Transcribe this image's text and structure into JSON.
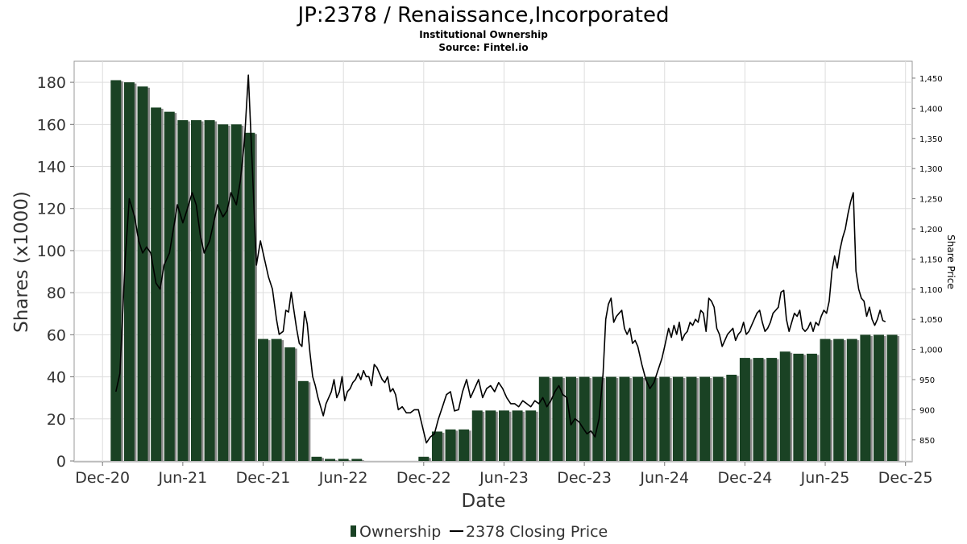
{
  "chart_data": {
    "type": "bar+line",
    "title": "JP:2378 / Renaissance,Incorporated",
    "subtitle": "Institutional Ownership",
    "source": "Source: Fintel.io",
    "xlabel": "Date",
    "ylabel": "Shares (x1000)",
    "y2label": "Share Price",
    "ylim": [
      0,
      190
    ],
    "y2lim": [
      815,
      1478
    ],
    "yticks": [
      0,
      20,
      40,
      60,
      80,
      100,
      120,
      140,
      160,
      180
    ],
    "y2ticks": [
      850,
      900,
      950,
      1000,
      1050,
      1100,
      1150,
      1200,
      1250,
      1300,
      1350,
      1400,
      1450
    ],
    "y2tick_labels": [
      "850",
      "900",
      "950",
      "1,000",
      "1,050",
      "1,100",
      "1,150",
      "1,200",
      "1,250",
      "1,300",
      "1,350",
      "1,400",
      "1,450"
    ],
    "xrange_months": [
      -2.0,
      60.5
    ],
    "xticks": [
      {
        "label": "Dec-20",
        "month": 0
      },
      {
        "label": "Jun-21",
        "month": 6
      },
      {
        "label": "Dec-21",
        "month": 12
      },
      {
        "label": "Jun-22",
        "month": 18
      },
      {
        "label": "Dec-22",
        "month": 24
      },
      {
        "label": "Jun-23",
        "month": 30
      },
      {
        "label": "Dec-23",
        "month": 36
      },
      {
        "label": "Jun-24",
        "month": 42
      },
      {
        "label": "Dec-24",
        "month": 48
      },
      {
        "label": "Jun-25",
        "month": 54
      },
      {
        "label": "Dec-25",
        "month": 60
      }
    ],
    "bar_start_month": 1,
    "bar_step_months": 1,
    "ownership_series_name": "Ownership",
    "ownership_values": [
      181,
      180,
      178,
      168,
      166,
      162,
      162,
      162,
      160,
      160,
      156,
      58,
      58,
      54,
      38,
      2,
      1,
      1,
      1,
      0,
      0,
      0,
      0,
      2,
      14,
      15,
      15,
      24,
      24,
      24,
      24,
      24,
      40,
      40,
      40,
      40,
      40,
      40,
      40,
      40,
      40,
      40,
      40,
      40,
      40,
      40,
      41,
      49,
      49,
      49,
      52,
      51,
      51,
      58,
      58,
      58,
      60,
      60,
      60
    ],
    "price_series_name": "2378 Closing Price",
    "price": [
      {
        "m": 1.0,
        "v": 930
      },
      {
        "m": 1.3,
        "v": 960
      },
      {
        "m": 1.7,
        "v": 1150
      },
      {
        "m": 2.0,
        "v": 1250
      },
      {
        "m": 2.4,
        "v": 1220
      },
      {
        "m": 2.7,
        "v": 1180
      },
      {
        "m": 3.0,
        "v": 1160
      },
      {
        "m": 3.3,
        "v": 1170
      },
      {
        "m": 3.6,
        "v": 1160
      },
      {
        "m": 4.0,
        "v": 1110
      },
      {
        "m": 4.3,
        "v": 1100
      },
      {
        "m": 4.6,
        "v": 1140
      },
      {
        "m": 5.0,
        "v": 1160
      },
      {
        "m": 5.3,
        "v": 1200
      },
      {
        "m": 5.6,
        "v": 1240
      },
      {
        "m": 6.0,
        "v": 1210
      },
      {
        "m": 6.3,
        "v": 1230
      },
      {
        "m": 6.7,
        "v": 1260
      },
      {
        "m": 7.0,
        "v": 1240
      },
      {
        "m": 7.3,
        "v": 1190
      },
      {
        "m": 7.6,
        "v": 1160
      },
      {
        "m": 8.0,
        "v": 1180
      },
      {
        "m": 8.3,
        "v": 1210
      },
      {
        "m": 8.6,
        "v": 1240
      },
      {
        "m": 9.0,
        "v": 1220
      },
      {
        "m": 9.3,
        "v": 1230
      },
      {
        "m": 9.6,
        "v": 1260
      },
      {
        "m": 10.0,
        "v": 1240
      },
      {
        "m": 10.3,
        "v": 1280
      },
      {
        "m": 10.6,
        "v": 1345
      },
      {
        "m": 10.9,
        "v": 1455
      },
      {
        "m": 11.2,
        "v": 1300
      },
      {
        "m": 11.5,
        "v": 1140
      },
      {
        "m": 11.8,
        "v": 1180
      },
      {
        "m": 12.1,
        "v": 1150
      },
      {
        "m": 12.4,
        "v": 1120
      },
      {
        "m": 12.7,
        "v": 1100
      },
      {
        "m": 13.0,
        "v": 1050
      },
      {
        "m": 13.2,
        "v": 1025
      },
      {
        "m": 13.5,
        "v": 1030
      },
      {
        "m": 13.7,
        "v": 1065
      },
      {
        "m": 13.9,
        "v": 1062
      },
      {
        "m": 14.1,
        "v": 1095
      },
      {
        "m": 14.3,
        "v": 1065
      },
      {
        "m": 14.5,
        "v": 1035
      },
      {
        "m": 14.7,
        "v": 1010
      },
      {
        "m": 14.9,
        "v": 1005
      },
      {
        "m": 15.1,
        "v": 1063
      },
      {
        "m": 15.3,
        "v": 1042
      },
      {
        "m": 15.5,
        "v": 995
      },
      {
        "m": 15.7,
        "v": 955
      },
      {
        "m": 15.9,
        "v": 940
      },
      {
        "m": 16.1,
        "v": 920
      },
      {
        "m": 16.3,
        "v": 905
      },
      {
        "m": 16.5,
        "v": 890
      },
      {
        "m": 16.7,
        "v": 910
      },
      {
        "m": 16.9,
        "v": 920
      },
      {
        "m": 17.1,
        "v": 930
      },
      {
        "m": 17.3,
        "v": 950
      },
      {
        "m": 17.5,
        "v": 920
      },
      {
        "m": 17.7,
        "v": 930
      },
      {
        "m": 17.9,
        "v": 955
      },
      {
        "m": 18.1,
        "v": 915
      },
      {
        "m": 18.3,
        "v": 930
      },
      {
        "m": 18.5,
        "v": 935
      },
      {
        "m": 18.7,
        "v": 945
      },
      {
        "m": 18.9,
        "v": 950
      },
      {
        "m": 19.1,
        "v": 960
      },
      {
        "m": 19.3,
        "v": 950
      },
      {
        "m": 19.5,
        "v": 965
      },
      {
        "m": 19.7,
        "v": 955
      },
      {
        "m": 19.9,
        "v": 955
      },
      {
        "m": 20.1,
        "v": 940
      },
      {
        "m": 20.3,
        "v": 975
      },
      {
        "m": 20.5,
        "v": 970
      },
      {
        "m": 20.7,
        "v": 960
      },
      {
        "m": 20.9,
        "v": 950
      },
      {
        "m": 21.1,
        "v": 945
      },
      {
        "m": 21.3,
        "v": 955
      },
      {
        "m": 21.5,
        "v": 930
      },
      {
        "m": 21.7,
        "v": 935
      },
      {
        "m": 21.9,
        "v": 925
      },
      {
        "m": 22.1,
        "v": 900
      },
      {
        "m": 22.4,
        "v": 905
      },
      {
        "m": 22.7,
        "v": 895
      },
      {
        "m": 23.0,
        "v": 895
      },
      {
        "m": 23.3,
        "v": 900
      },
      {
        "m": 23.6,
        "v": 900
      },
      {
        "m": 24.2,
        "v": 845
      },
      {
        "m": 24.5,
        "v": 855
      },
      {
        "m": 24.8,
        "v": 860
      },
      {
        "m": 25.1,
        "v": 885
      },
      {
        "m": 25.4,
        "v": 905
      },
      {
        "m": 25.7,
        "v": 925
      },
      {
        "m": 26.0,
        "v": 930
      },
      {
        "m": 26.3,
        "v": 898
      },
      {
        "m": 26.6,
        "v": 900
      },
      {
        "m": 26.9,
        "v": 930
      },
      {
        "m": 27.2,
        "v": 950
      },
      {
        "m": 27.5,
        "v": 920
      },
      {
        "m": 27.8,
        "v": 935
      },
      {
        "m": 28.1,
        "v": 950
      },
      {
        "m": 28.4,
        "v": 920
      },
      {
        "m": 28.7,
        "v": 935
      },
      {
        "m": 29.0,
        "v": 940
      },
      {
        "m": 29.3,
        "v": 930
      },
      {
        "m": 29.6,
        "v": 945
      },
      {
        "m": 29.9,
        "v": 935
      },
      {
        "m": 30.2,
        "v": 920
      },
      {
        "m": 30.5,
        "v": 910
      },
      {
        "m": 30.8,
        "v": 910
      },
      {
        "m": 31.1,
        "v": 905
      },
      {
        "m": 31.4,
        "v": 915
      },
      {
        "m": 31.7,
        "v": 910
      },
      {
        "m": 32.0,
        "v": 905
      },
      {
        "m": 32.3,
        "v": 915
      },
      {
        "m": 32.6,
        "v": 910
      },
      {
        "m": 32.9,
        "v": 920
      },
      {
        "m": 33.2,
        "v": 905
      },
      {
        "m": 33.5,
        "v": 915
      },
      {
        "m": 33.8,
        "v": 930
      },
      {
        "m": 34.1,
        "v": 940
      },
      {
        "m": 34.4,
        "v": 925
      },
      {
        "m": 34.7,
        "v": 920
      },
      {
        "m": 35.0,
        "v": 875
      },
      {
        "m": 35.3,
        "v": 885
      },
      {
        "m": 35.6,
        "v": 880
      },
      {
        "m": 35.9,
        "v": 870
      },
      {
        "m": 36.2,
        "v": 860
      },
      {
        "m": 36.5,
        "v": 865
      },
      {
        "m": 36.8,
        "v": 855
      },
      {
        "m": 37.1,
        "v": 885
      },
      {
        "m": 37.4,
        "v": 960
      },
      {
        "m": 37.6,
        "v": 1050
      },
      {
        "m": 37.8,
        "v": 1075
      },
      {
        "m": 38.0,
        "v": 1085
      },
      {
        "m": 38.2,
        "v": 1045
      },
      {
        "m": 38.4,
        "v": 1055
      },
      {
        "m": 38.6,
        "v": 1060
      },
      {
        "m": 38.8,
        "v": 1065
      },
      {
        "m": 39.0,
        "v": 1035
      },
      {
        "m": 39.2,
        "v": 1025
      },
      {
        "m": 39.4,
        "v": 1035
      },
      {
        "m": 39.6,
        "v": 1010
      },
      {
        "m": 39.8,
        "v": 1015
      },
      {
        "m": 40.0,
        "v": 1005
      },
      {
        "m": 40.3,
        "v": 975
      },
      {
        "m": 40.6,
        "v": 950
      },
      {
        "m": 40.9,
        "v": 935
      },
      {
        "m": 41.2,
        "v": 945
      },
      {
        "m": 41.5,
        "v": 965
      },
      {
        "m": 41.8,
        "v": 985
      },
      {
        "m": 42.0,
        "v": 1005
      },
      {
        "m": 42.3,
        "v": 1035
      },
      {
        "m": 42.5,
        "v": 1020
      },
      {
        "m": 42.7,
        "v": 1040
      },
      {
        "m": 42.9,
        "v": 1025
      },
      {
        "m": 43.1,
        "v": 1045
      },
      {
        "m": 43.3,
        "v": 1015
      },
      {
        "m": 43.5,
        "v": 1025
      },
      {
        "m": 43.7,
        "v": 1030
      },
      {
        "m": 43.9,
        "v": 1045
      },
      {
        "m": 44.1,
        "v": 1040
      },
      {
        "m": 44.3,
        "v": 1050
      },
      {
        "m": 44.5,
        "v": 1045
      },
      {
        "m": 44.7,
        "v": 1065
      },
      {
        "m": 44.9,
        "v": 1060
      },
      {
        "m": 45.1,
        "v": 1030
      },
      {
        "m": 45.3,
        "v": 1085
      },
      {
        "m": 45.5,
        "v": 1080
      },
      {
        "m": 45.7,
        "v": 1070
      },
      {
        "m": 45.9,
        "v": 1035
      },
      {
        "m": 46.1,
        "v": 1025
      },
      {
        "m": 46.3,
        "v": 1005
      },
      {
        "m": 46.5,
        "v": 1015
      },
      {
        "m": 46.7,
        "v": 1025
      },
      {
        "m": 46.9,
        "v": 1030
      },
      {
        "m": 47.1,
        "v": 1035
      },
      {
        "m": 47.3,
        "v": 1015
      },
      {
        "m": 47.5,
        "v": 1025
      },
      {
        "m": 47.7,
        "v": 1030
      },
      {
        "m": 47.9,
        "v": 1045
      },
      {
        "m": 48.1,
        "v": 1025
      },
      {
        "m": 48.3,
        "v": 1030
      },
      {
        "m": 48.5,
        "v": 1040
      },
      {
        "m": 48.7,
        "v": 1050
      },
      {
        "m": 48.9,
        "v": 1060
      },
      {
        "m": 49.1,
        "v": 1065
      },
      {
        "m": 49.3,
        "v": 1045
      },
      {
        "m": 49.5,
        "v": 1030
      },
      {
        "m": 49.7,
        "v": 1035
      },
      {
        "m": 49.9,
        "v": 1045
      },
      {
        "m": 50.1,
        "v": 1060
      },
      {
        "m": 50.3,
        "v": 1065
      },
      {
        "m": 50.5,
        "v": 1070
      },
      {
        "m": 50.7,
        "v": 1095
      },
      {
        "m": 50.9,
        "v": 1098
      },
      {
        "m": 51.1,
        "v": 1050
      },
      {
        "m": 51.3,
        "v": 1030
      },
      {
        "m": 51.5,
        "v": 1045
      },
      {
        "m": 51.7,
        "v": 1060
      },
      {
        "m": 51.9,
        "v": 1055
      },
      {
        "m": 52.1,
        "v": 1065
      },
      {
        "m": 52.3,
        "v": 1035
      },
      {
        "m": 52.5,
        "v": 1030
      },
      {
        "m": 52.7,
        "v": 1035
      },
      {
        "m": 52.9,
        "v": 1045
      },
      {
        "m": 53.1,
        "v": 1030
      },
      {
        "m": 53.3,
        "v": 1045
      },
      {
        "m": 53.5,
        "v": 1040
      },
      {
        "m": 53.7,
        "v": 1055
      },
      {
        "m": 53.9,
        "v": 1065
      },
      {
        "m": 54.1,
        "v": 1060
      },
      {
        "m": 54.3,
        "v": 1080
      },
      {
        "m": 54.5,
        "v": 1130
      },
      {
        "m": 54.7,
        "v": 1155
      },
      {
        "m": 54.9,
        "v": 1135
      },
      {
        "m": 55.1,
        "v": 1165
      },
      {
        "m": 55.3,
        "v": 1185
      },
      {
        "m": 55.5,
        "v": 1200
      },
      {
        "m": 55.7,
        "v": 1225
      },
      {
        "m": 55.9,
        "v": 1245
      },
      {
        "m": 56.1,
        "v": 1260
      },
      {
        "m": 56.3,
        "v": 1130
      },
      {
        "m": 56.5,
        "v": 1100
      },
      {
        "m": 56.7,
        "v": 1085
      },
      {
        "m": 56.9,
        "v": 1080
      },
      {
        "m": 57.1,
        "v": 1055
      },
      {
        "m": 57.3,
        "v": 1070
      },
      {
        "m": 57.5,
        "v": 1050
      },
      {
        "m": 57.7,
        "v": 1040
      },
      {
        "m": 57.9,
        "v": 1050
      },
      {
        "m": 58.1,
        "v": 1065
      },
      {
        "m": 58.3,
        "v": 1048
      },
      {
        "m": 58.5,
        "v": 1046
      }
    ],
    "legend": [
      {
        "label": "Ownership",
        "kind": "bar",
        "color": "#1a4224"
      },
      {
        "label": "2378 Closing Price",
        "kind": "line",
        "color": "#000000"
      }
    ]
  },
  "colors": {
    "bar": "#1a4224",
    "bar_shadow": "#8a8a8a",
    "line": "#000000",
    "grid": "#dddddd"
  }
}
